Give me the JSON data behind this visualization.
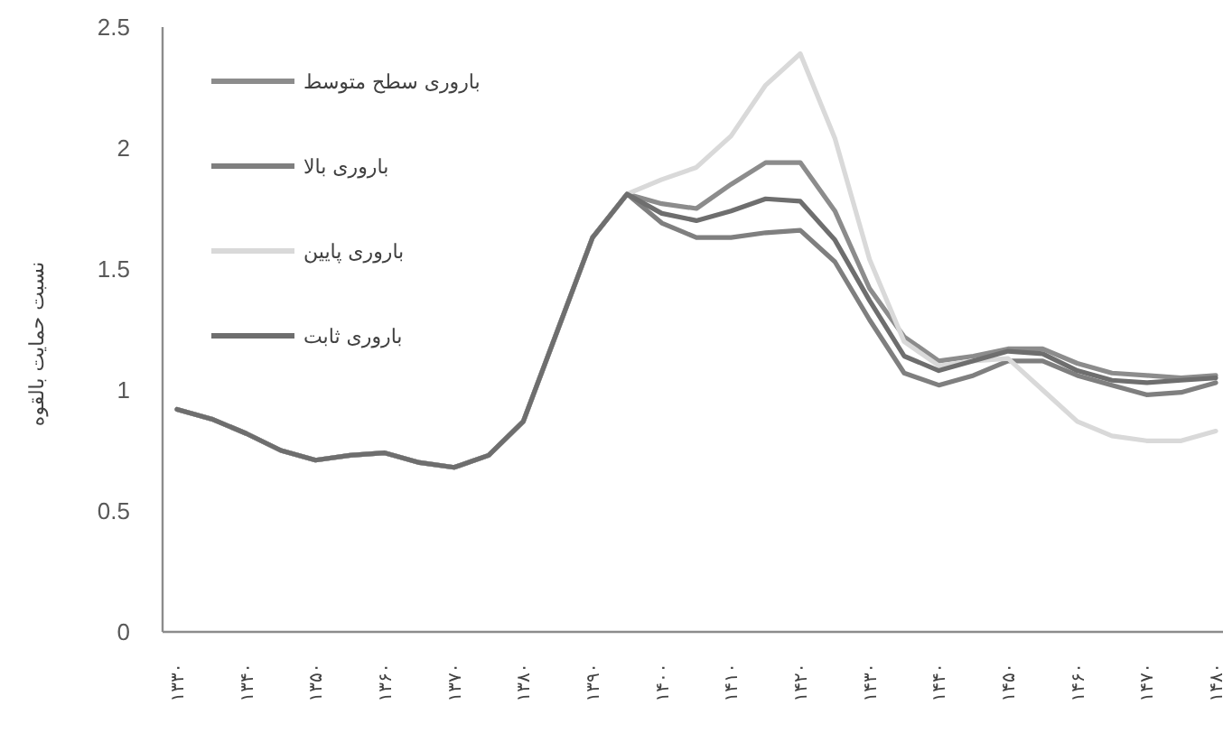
{
  "chart_data": {
    "type": "line",
    "ylabel": "نسبت حمایت بالقوه",
    "categories": [
      "۱۳۳۰",
      null,
      "۱۳۴۰",
      null,
      "۱۳۵۰",
      null,
      "۱۳۶۰",
      null,
      "۱۳۷۰",
      null,
      "۱۳۸۰",
      null,
      "۱۳۹۰",
      null,
      "۱۴۰۰",
      null,
      "۱۴۱۰",
      null,
      "۱۴۲۰",
      null,
      "۱۴۳۰",
      null,
      "۱۴۴۰",
      null,
      "۱۴۵۰",
      null,
      "۱۴۶۰",
      null,
      "۱۴۷۰",
      null,
      "۱۴۸۰"
    ],
    "series": [
      {
        "name": "باروری سطح متوسط",
        "color": "#8c8c8c",
        "values": [
          0.92,
          0.88,
          0.82,
          0.75,
          0.71,
          0.73,
          0.74,
          0.7,
          0.68,
          0.73,
          0.87,
          1.25,
          1.63,
          1.81,
          1.77,
          1.75,
          1.85,
          1.94,
          1.94,
          1.74,
          1.42,
          1.22,
          1.12,
          1.14,
          1.17,
          1.17,
          1.11,
          1.07,
          1.06,
          1.05,
          1.06
        ]
      },
      {
        "name": "باروری بالا",
        "color": "#7f7f7f",
        "values": [
          0.92,
          0.88,
          0.82,
          0.75,
          0.71,
          0.73,
          0.74,
          0.7,
          0.68,
          0.73,
          0.87,
          1.25,
          1.63,
          1.81,
          1.69,
          1.63,
          1.63,
          1.65,
          1.66,
          1.53,
          1.29,
          1.07,
          1.02,
          1.06,
          1.12,
          1.12,
          1.06,
          1.02,
          0.98,
          0.99,
          1.03
        ]
      },
      {
        "name": "باروری پایین",
        "color": "#d9d9d9",
        "values": [
          0.92,
          0.88,
          0.82,
          0.75,
          0.71,
          0.73,
          0.74,
          0.7,
          0.68,
          0.73,
          0.87,
          1.25,
          1.63,
          1.81,
          1.87,
          1.92,
          2.05,
          2.26,
          2.39,
          2.04,
          1.54,
          1.2,
          1.1,
          1.12,
          1.13,
          1.0,
          0.87,
          0.81,
          0.79,
          0.79,
          0.83
        ]
      },
      {
        "name": "باروری ثابت",
        "color": "#6e6e6e",
        "values": [
          0.92,
          0.88,
          0.82,
          0.75,
          0.71,
          0.73,
          0.74,
          0.7,
          0.68,
          0.73,
          0.87,
          1.25,
          1.63,
          1.81,
          1.73,
          1.7,
          1.74,
          1.79,
          1.78,
          1.62,
          1.37,
          1.14,
          1.08,
          1.12,
          1.16,
          1.15,
          1.08,
          1.04,
          1.03,
          1.04,
          1.05
        ]
      }
    ],
    "ylim": [
      0,
      2.5
    ],
    "yticks": [
      0,
      0.5,
      1,
      1.5,
      2,
      2.5
    ],
    "legend": "top left"
  }
}
